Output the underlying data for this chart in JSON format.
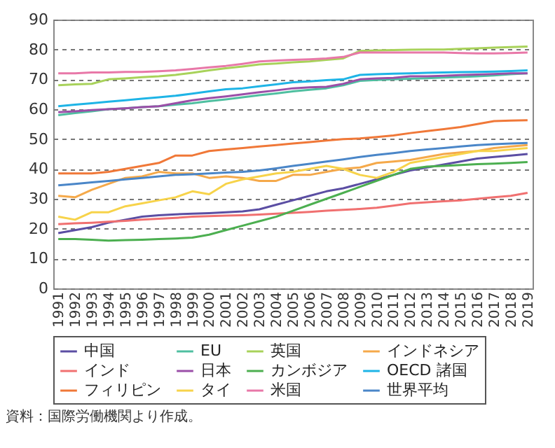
{
  "chart_data": {
    "type": "line",
    "categories": [
      "1991",
      "1992",
      "1993",
      "1994",
      "1995",
      "1996",
      "1997",
      "1998",
      "1999",
      "2000",
      "2001",
      "2002",
      "2003",
      "2004",
      "2005",
      "2006",
      "2007",
      "2008",
      "2009",
      "2010",
      "2011",
      "2012",
      "2013",
      "2014",
      "2015",
      "2016",
      "2017",
      "2018",
      "2019"
    ],
    "ylim": [
      0,
      90
    ],
    "yticks": [
      0,
      10,
      20,
      30,
      40,
      50,
      60,
      70,
      80,
      90
    ],
    "grid": "y",
    "legend": "bottom",
    "marker": "none",
    "line_style": "solid",
    "annotations": [
      "資料：国際労働機関より作成。"
    ],
    "series": [
      {
        "name": "中国",
        "color": "#5b4ea3",
        "values": [
          18.5,
          19.5,
          20.5,
          22,
          23,
          24,
          24.5,
          24.8,
          25,
          25.2,
          25.5,
          25.8,
          26.5,
          28,
          29.5,
          31,
          32.5,
          33.5,
          35,
          36.5,
          38,
          39.5,
          40.5,
          41.5,
          42.5,
          43.5,
          44,
          44.5,
          45
        ]
      },
      {
        "name": "EU",
        "color": "#4fbfa0",
        "values": [
          58,
          58.7,
          59.3,
          60,
          60.3,
          60.7,
          61,
          61.5,
          62,
          62.7,
          63.3,
          64,
          64.7,
          65.3,
          66,
          66.5,
          67,
          68,
          69.5,
          69.8,
          70,
          70.2,
          70.4,
          70.6,
          70.8,
          71,
          71.3,
          71.7,
          72
        ]
      },
      {
        "name": "英国",
        "color": "#a8d25a",
        "values": [
          68,
          68.3,
          68.5,
          70,
          70.3,
          70.7,
          71,
          71.5,
          72.2,
          73,
          73.7,
          74.3,
          75,
          75.3,
          75.7,
          76,
          76.5,
          77,
          79.5,
          79.7,
          79.8,
          79.9,
          80,
          80,
          80.2,
          80.4,
          80.6,
          80.8,
          81
        ]
      },
      {
        "name": "インドネシア",
        "color": "#f5a94a",
        "values": [
          31,
          30.5,
          33,
          35,
          37,
          37.5,
          39,
          38.5,
          38.5,
          37,
          37.5,
          37,
          36,
          36,
          38,
          38,
          39,
          40,
          40.5,
          42,
          42.5,
          43,
          44,
          45,
          45.5,
          46,
          47,
          47.5,
          48
        ]
      },
      {
        "name": "インド",
        "color": "#f07070",
        "values": [
          21.5,
          21.8,
          22,
          22.3,
          22.6,
          23,
          23.3,
          23.6,
          24,
          24.2,
          24.4,
          24.5,
          24.7,
          25,
          25.3,
          25.6,
          26,
          26.3,
          26.6,
          27,
          27.7,
          28.5,
          28.8,
          29.2,
          29.5,
          30,
          30.5,
          31,
          32
        ]
      },
      {
        "name": "日本",
        "color": "#9b4fa8",
        "values": [
          59,
          59.3,
          59.7,
          60,
          60.3,
          60.7,
          61,
          62,
          63,
          63.7,
          64.3,
          65,
          65.7,
          66.3,
          67,
          67.3,
          67.5,
          68.5,
          70,
          70.3,
          70.5,
          71,
          71,
          71.2,
          71.4,
          71.6,
          71.8,
          72,
          72
        ]
      },
      {
        "name": "カンボジア",
        "color": "#4caf50",
        "values": [
          16.5,
          16.5,
          16.3,
          16,
          16.2,
          16.3,
          16.5,
          16.7,
          17,
          18,
          19.5,
          21,
          22.5,
          24,
          26,
          28,
          30,
          32,
          34,
          36,
          38,
          40,
          40.8,
          41,
          41.3,
          41.6,
          41.8,
          42,
          42.3
        ]
      },
      {
        "name": "OECD 諸国",
        "color": "#1eb4e6",
        "values": [
          61,
          61.5,
          62,
          62.5,
          63,
          63.5,
          64,
          64.5,
          65.2,
          66,
          66.7,
          67,
          67.7,
          68.3,
          69,
          69.3,
          69.7,
          70,
          71.5,
          71.7,
          71.9,
          72,
          72.2,
          72.3,
          72.4,
          72.5,
          72.6,
          72.8,
          73
        ]
      },
      {
        "name": "フィリピン",
        "color": "#f07838",
        "values": [
          38.5,
          38.5,
          38.5,
          39,
          40,
          41,
          42,
          44.5,
          44.5,
          46,
          46.5,
          47,
          47.5,
          48,
          48.5,
          49,
          49.5,
          50,
          50.2,
          50.7,
          51.2,
          52,
          52.7,
          53.3,
          54,
          55,
          56,
          56.2,
          56.3
        ]
      },
      {
        "name": "タイ",
        "color": "#f7d34a",
        "values": [
          24,
          23,
          25.5,
          25.5,
          27.5,
          28.5,
          29.5,
          30.5,
          32.5,
          31.5,
          35,
          36.5,
          37.5,
          38.5,
          39,
          40,
          41,
          40,
          38,
          37,
          39,
          42,
          43,
          44,
          45,
          46,
          46,
          46.5,
          47
        ]
      },
      {
        "name": "米国",
        "color": "#e878a8",
        "values": [
          72,
          72,
          72.3,
          72.3,
          72.5,
          72.5,
          72.7,
          73,
          73.5,
          74,
          74.5,
          75.2,
          76,
          76.3,
          76.5,
          76.7,
          77,
          77.5,
          79,
          79,
          79,
          79,
          79,
          79,
          78.8,
          78.7,
          78.7,
          78.8,
          79
        ]
      },
      {
        "name": "世界平均",
        "color": "#4a86c8",
        "values": [
          34.5,
          35,
          35.5,
          36,
          36.5,
          37,
          37.5,
          38,
          38.2,
          38.5,
          38.8,
          39,
          39.5,
          40.2,
          41,
          41.7,
          42.5,
          43.2,
          44,
          44.7,
          45.3,
          46,
          46.5,
          47,
          47.5,
          48,
          48.3,
          48.5,
          48.7
        ]
      }
    ]
  }
}
